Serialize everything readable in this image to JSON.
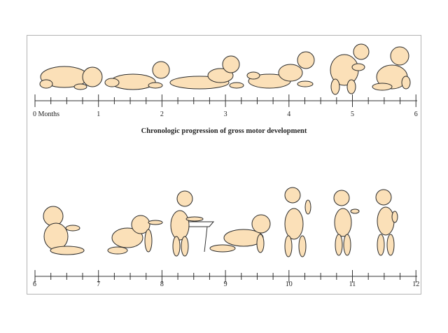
{
  "title": "Chronologic progression of gross motor development",
  "colors": {
    "skin": "#fbe0b8",
    "outline": "#2b2b2b",
    "axis": "#333333",
    "frame": "#b3b3b3"
  },
  "timeline_top": {
    "labels": [
      "0 Months",
      "1",
      "2",
      "3",
      "4",
      "5",
      "6"
    ]
  },
  "timeline_bottom": {
    "labels": [
      "6",
      "7",
      "8",
      "9",
      "10",
      "11",
      "12"
    ]
  },
  "figures_top": [
    "newborn-curled-prone",
    "lifts-head-prone",
    "raises-head-and-chest",
    "props-on-forearms",
    "rolls-over",
    "sits-with-support"
  ],
  "figures_bottom": [
    "sits-unsupported",
    "creeps-on-hands-and-knees",
    "pulls-to-stand-at-furniture",
    "crawls",
    "walks-with-help",
    "stands-alone",
    "walks-alone"
  ]
}
